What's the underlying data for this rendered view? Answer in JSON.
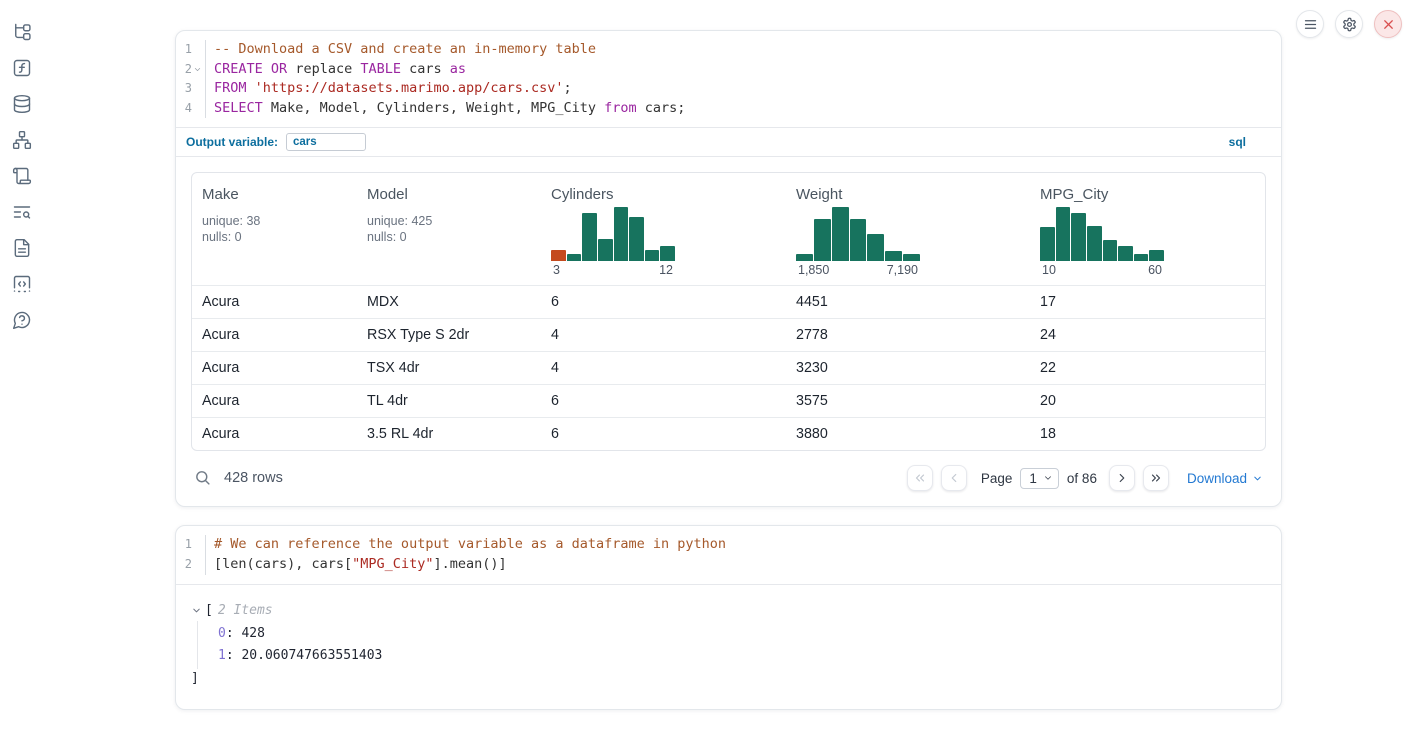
{
  "colors": {
    "hist_bar": "#17735E",
    "hist_bar_highlight": "#C44A1E",
    "accent_blue": "#0C6E9E",
    "link_blue": "#2379D2"
  },
  "topbar": {
    "icons": [
      "hamburger-menu",
      "gear",
      "close-x"
    ]
  },
  "sidebar": {
    "icons": [
      "file-tree",
      "function-square",
      "database",
      "network",
      "scroll",
      "text-search",
      "file-text",
      "snippets",
      "help-chat"
    ]
  },
  "sql_cell": {
    "lines": [
      {
        "num": "1",
        "fold": false,
        "tokens": [
          [
            "c",
            "-- Download a CSV and create an in-memory table"
          ]
        ]
      },
      {
        "num": "2",
        "fold": true,
        "tokens": [
          [
            "k",
            "CREATE"
          ],
          [
            "p",
            " "
          ],
          [
            "k",
            "OR"
          ],
          [
            "p",
            " replace "
          ],
          [
            "k",
            "TABLE"
          ],
          [
            "p",
            " cars "
          ],
          [
            "k",
            "as"
          ]
        ]
      },
      {
        "num": "3",
        "fold": false,
        "tokens": [
          [
            "k",
            "FROM"
          ],
          [
            "p",
            " "
          ],
          [
            "s",
            "'https://datasets.marimo.app/cars.csv'"
          ],
          [
            "p",
            ";"
          ]
        ]
      },
      {
        "num": "4",
        "fold": false,
        "tokens": [
          [
            "k",
            "SELECT"
          ],
          [
            "p",
            " Make, Model, Cylinders, Weight, MPG_City "
          ],
          [
            "k",
            "from"
          ],
          [
            "p",
            " cars;"
          ]
        ]
      }
    ],
    "output_variable": {
      "label": "Output variable:",
      "value": "cars"
    },
    "language_badge": "sql"
  },
  "table": {
    "columns": [
      {
        "name": "Make",
        "stats": [
          "unique: 38",
          "nulls: 0"
        ]
      },
      {
        "name": "Model",
        "stats": [
          "unique: 425",
          "nulls: 0"
        ]
      },
      {
        "name": "Cylinders",
        "histogram": {
          "values": [
            0.22,
            0.13,
            0.9,
            0.42,
            1,
            0.82,
            0.22,
            0.29
          ],
          "highlight_first": true,
          "x_labels": [
            "3",
            "12"
          ]
        }
      },
      {
        "name": "Weight",
        "histogram": {
          "values": [
            0.13,
            0.78,
            1,
            0.79,
            0.51,
            0.2,
            0.14
          ],
          "highlight_first": false,
          "x_labels": [
            "1,850",
            "7,190"
          ]
        }
      },
      {
        "name": "MPG_City",
        "histogram": {
          "values": [
            0.63,
            1,
            0.9,
            0.66,
            0.4,
            0.28,
            0.13,
            0.21
          ],
          "highlight_first": false,
          "x_labels": [
            "10",
            "60"
          ]
        }
      }
    ],
    "rows": [
      [
        "Acura",
        "MDX",
        "6",
        "4451",
        "17"
      ],
      [
        "Acura",
        "RSX Type S 2dr",
        "4",
        "2778",
        "24"
      ],
      [
        "Acura",
        "TSX 4dr",
        "4",
        "3230",
        "22"
      ],
      [
        "Acura",
        "TL 4dr",
        "6",
        "3575",
        "20"
      ],
      [
        "Acura",
        "3.5 RL 4dr",
        "6",
        "3880",
        "18"
      ]
    ],
    "footer": {
      "row_count": "428 rows",
      "page_label": "Page",
      "page_value": "1",
      "total_label": "of 86",
      "download_label": "Download"
    }
  },
  "python_cell": {
    "lines": [
      {
        "num": "1",
        "fold": false,
        "tokens": [
          [
            "c",
            "# We can reference the output variable as a dataframe in python"
          ]
        ]
      },
      {
        "num": "2",
        "fold": false,
        "tokens": [
          [
            "p",
            "[len(cars), cars["
          ],
          [
            "s",
            "\"MPG_City\""
          ],
          [
            "p",
            "].mean()]"
          ]
        ]
      }
    ]
  },
  "list_output": {
    "open_bracket": "[",
    "items_label": "2 Items",
    "entries": [
      {
        "key": "0",
        "value": "428"
      },
      {
        "key": "1",
        "value": "20.060747663551403"
      }
    ],
    "close_bracket": "]"
  }
}
